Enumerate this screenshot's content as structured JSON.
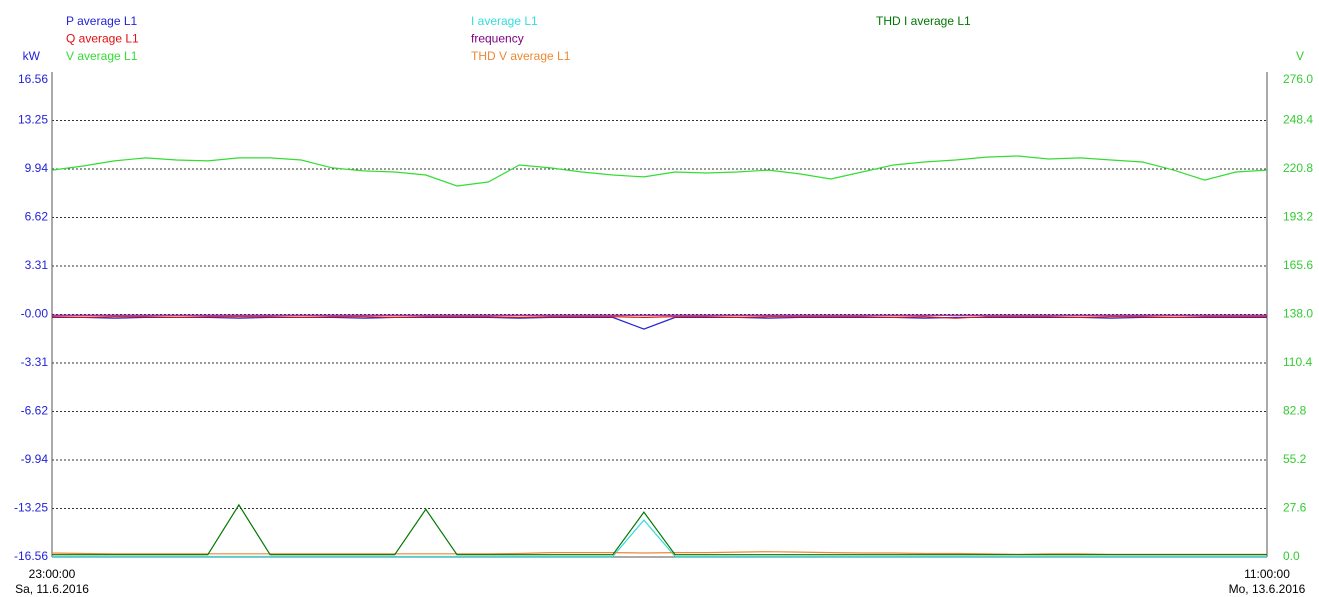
{
  "chart_data": {
    "type": "line",
    "ylabel": "kW",
    "y2label": "V",
    "ylim": [
      -16.56,
      16.56
    ],
    "yticks": [
      16.56,
      13.25,
      9.94,
      6.62,
      3.31,
      {
        "value": 0,
        "label": "-0.00"
      },
      -3.31,
      -6.62,
      -9.94,
      -13.25,
      -16.56
    ],
    "y2lim": [
      0,
      276
    ],
    "y2ticks": [
      {
        "value": 276,
        "label": "276.0"
      },
      248.4,
      220.8,
      193.2,
      165.6,
      {
        "value": 138,
        "label": "138.0"
      },
      110.4,
      82.8,
      55.2,
      27.6,
      {
        "value": 0,
        "label": "0.0"
      }
    ],
    "grid": true,
    "x_labels": [
      {
        "time": "23:00:00",
        "date": "Sa, 11.6.2016"
      },
      {
        "time": "11:00:00",
        "date": "Mo, 13.6.2016"
      }
    ],
    "series": [
      {
        "name": "P average L1",
        "color": "#2323d8",
        "values": [
          -0.2,
          -0.2,
          -0.25,
          -0.2,
          -0.2,
          -0.2,
          -0.25,
          -0.2,
          -0.2,
          -0.2,
          -0.25,
          -0.2,
          -0.2,
          -0.2,
          -0.2,
          -0.25,
          -0.2,
          -0.2,
          -0.2,
          -1.0,
          -0.2,
          -0.2,
          -0.2,
          -0.25,
          -0.2,
          -0.2,
          -0.2,
          -0.2,
          -0.25,
          -0.2,
          -0.2,
          -0.2,
          -0.2,
          -0.2,
          -0.25,
          -0.2,
          -0.2,
          -0.2,
          -0.2,
          -0.2
        ]
      },
      {
        "name": "Q average L1",
        "color": "#e01010",
        "values": [
          -0.15,
          -0.2,
          -0.15,
          -0.15,
          -0.2,
          -0.15,
          -0.15,
          -0.15,
          -0.2,
          -0.15,
          -0.15,
          -0.2,
          -0.15,
          -0.15,
          -0.15,
          -0.2,
          -0.15,
          -0.15,
          -0.15,
          -0.2,
          -0.15,
          -0.15,
          -0.2,
          -0.15,
          -0.15,
          -0.15,
          -0.15,
          -0.2,
          -0.15,
          -0.25,
          -0.15,
          -0.15,
          -0.15,
          -0.2,
          -0.15,
          -0.15,
          -0.2,
          -0.15,
          -0.15,
          -0.15
        ]
      },
      {
        "name": "V average L1",
        "color": "#33dd33",
        "axis": "y2",
        "values": [
          220.2,
          222.5,
          225.4,
          227.1,
          225.9,
          225.4,
          227.1,
          227.1,
          225.9,
          221.4,
          219.7,
          219.1,
          217.4,
          211.1,
          213.4,
          223.1,
          221.4,
          219.1,
          217.4,
          216.3,
          219.1,
          218.5,
          219.1,
          220.2,
          218.0,
          215.1,
          219.1,
          223.1,
          224.8,
          225.9,
          227.6,
          228.2,
          226.5,
          227.1,
          225.9,
          224.8,
          220.2,
          214.5,
          219.1,
          220.2
        ]
      },
      {
        "name": "I average L1",
        "color": "#33dddd",
        "axis": "y2",
        "values": [
          0.3,
          0.3,
          0.3,
          0.3,
          0.3,
          0.3,
          0.3,
          0.3,
          0.3,
          0.3,
          0.3,
          0.3,
          0.3,
          0.3,
          0.3,
          0.3,
          0.3,
          0.3,
          0.3,
          21,
          0.3,
          0.3,
          0.3,
          0.3,
          0.3,
          0.3,
          0.3,
          0.3,
          0.3,
          0.3,
          0.3,
          0.3,
          0.3,
          0.3,
          0.3,
          0.3,
          0.3,
          0.3,
          0.3,
          0.3
        ]
      },
      {
        "name": "frequency",
        "color": "#800080",
        "values": [
          -0.05,
          -0.05,
          -0.05,
          -0.05,
          -0.05,
          -0.05,
          -0.05,
          -0.05,
          -0.05,
          -0.05,
          -0.05,
          -0.05,
          -0.05,
          -0.05,
          -0.05,
          -0.05,
          -0.05,
          -0.05,
          -0.05,
          -0.05,
          -0.05,
          -0.05,
          -0.05,
          -0.05,
          -0.05,
          -0.05,
          -0.05,
          -0.05,
          -0.05,
          -0.05,
          -0.05,
          -0.05,
          -0.05,
          -0.05,
          -0.05,
          -0.05,
          -0.05,
          -0.05,
          -0.05,
          -0.05
        ]
      },
      {
        "name": "THD V average L1",
        "color": "#ee8833",
        "axis": "y2",
        "values": [
          2.3,
          2.0,
          1.8,
          1.8,
          1.8,
          1.8,
          1.8,
          1.8,
          1.8,
          1.8,
          1.8,
          1.8,
          1.8,
          1.8,
          1.8,
          2.0,
          2.5,
          2.5,
          2.5,
          2.3,
          2.5,
          2.5,
          2.8,
          3.0,
          2.8,
          2.5,
          2.3,
          2.3,
          2.0,
          2.0,
          1.8,
          1.5,
          1.8,
          1.8,
          1.5,
          1.5,
          1.5,
          1.5,
          1.5,
          1.5
        ]
      },
      {
        "name": "THD I average L1",
        "color": "#007700",
        "values": [
          -16.4,
          -16.4,
          -16.4,
          -16.4,
          -16.4,
          -16.4,
          -13.0,
          -16.4,
          -16.4,
          -16.4,
          -16.4,
          -16.4,
          -13.3,
          -16.4,
          -16.4,
          -16.4,
          -16.4,
          -16.4,
          -16.4,
          -13.5,
          -16.4,
          -16.4,
          -16.4,
          -16.4,
          -16.4,
          -16.4,
          -16.4,
          -16.4,
          -16.4,
          -16.4,
          -16.4,
          -16.4,
          -16.4,
          -16.4,
          -16.4,
          -16.4,
          -16.4,
          -16.4,
          -16.4,
          -16.4
        ]
      }
    ]
  }
}
